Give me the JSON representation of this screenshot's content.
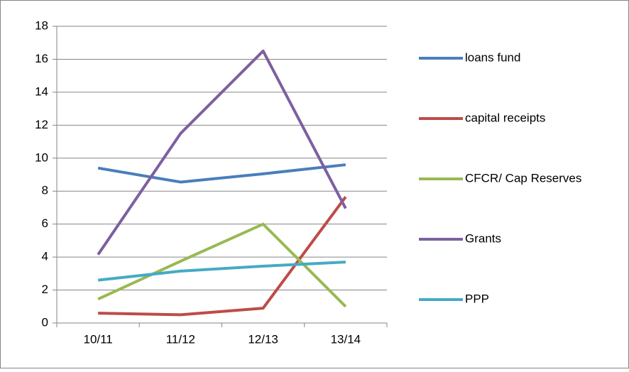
{
  "chart_data": {
    "type": "line",
    "categories": [
      "10/11",
      "11/12",
      "12/13",
      "13/14"
    ],
    "series": [
      {
        "name": "loans fund",
        "color": "#4a7ebb",
        "values": [
          9.4,
          8.55,
          9.05,
          9.6
        ]
      },
      {
        "name": "capital receipts",
        "color": "#be4b48",
        "values": [
          0.6,
          0.5,
          0.9,
          7.65
        ]
      },
      {
        "name": "CFCR/ Cap Reserves",
        "color": "#98b954",
        "values": [
          1.45,
          3.75,
          6.0,
          1.0
        ]
      },
      {
        "name": "Grants",
        "color": "#7d60a0",
        "values": [
          4.15,
          11.5,
          16.5,
          6.95
        ]
      },
      {
        "name": "PPP",
        "color": "#46aac5",
        "values": [
          2.6,
          3.15,
          3.45,
          3.7
        ]
      }
    ],
    "ylim": [
      0,
      18
    ],
    "yticks": [
      0,
      2,
      4,
      6,
      8,
      10,
      12,
      14,
      16,
      18
    ],
    "grid": true,
    "legend": "right"
  }
}
